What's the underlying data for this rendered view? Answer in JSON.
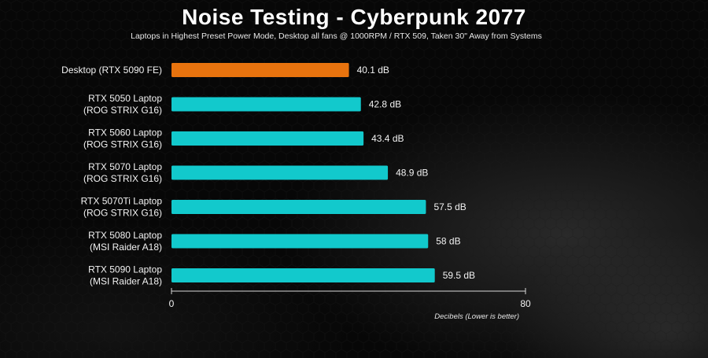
{
  "chart_data": {
    "type": "bar",
    "orientation": "horizontal",
    "title": "Noise Testing - Cyberpunk 2077",
    "subtitle": "Laptops in Highest Preset Power Mode, Desktop all fans @ 1000RPM / RTX 509, Taken 30\" Away from Systems",
    "categories": [
      [
        "Desktop (RTX 5090 FE)"
      ],
      [
        "RTX 5050 Laptop",
        "(ROG STRIX G16)"
      ],
      [
        "RTX 5060 Laptop",
        "(ROG STRIX G16)"
      ],
      [
        "RTX 5070 Laptop",
        "(ROG STRIX G16)"
      ],
      [
        "RTX 5070Ti Laptop",
        "(ROG STRIX G16)"
      ],
      [
        "RTX 5080 Laptop",
        "(MSI Raider A18)"
      ],
      [
        "RTX 5090 Laptop",
        "(MSI Raider A18)"
      ]
    ],
    "values": [
      40.1,
      42.8,
      43.4,
      48.9,
      57.5,
      58,
      59.5
    ],
    "value_labels": [
      "40.1 dB",
      "42.8 dB",
      "43.4 dB",
      "48.9 dB",
      "57.5 dB",
      "58 dB",
      "59.5 dB"
    ],
    "colors": [
      "#e8730e",
      "#12c9cc",
      "#12c9cc",
      "#12c9cc",
      "#12c9cc",
      "#12c9cc",
      "#12c9cc"
    ],
    "xlim": [
      0,
      80
    ],
    "xticks": [
      "0",
      "80"
    ],
    "xlabel": "Decibels (Lower is better)",
    "ylabel": "",
    "grid": false,
    "legend": "none"
  },
  "colors": {
    "highlight": "#e8730e",
    "accent": "#12c9cc",
    "axis": "#d9d9d9"
  }
}
